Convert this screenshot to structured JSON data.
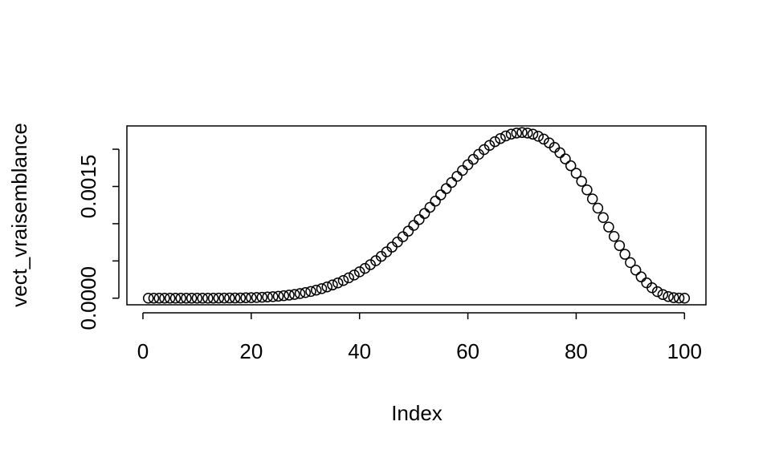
{
  "chart_data": {
    "type": "scatter",
    "x_label": "Index",
    "y_label": "vect_vraisemblance",
    "x": [
      1,
      2,
      3,
      4,
      5,
      6,
      7,
      8,
      9,
      10,
      11,
      12,
      13,
      14,
      15,
      16,
      17,
      18,
      19,
      20,
      21,
      22,
      23,
      24,
      25,
      26,
      27,
      28,
      29,
      30,
      31,
      32,
      33,
      34,
      35,
      36,
      37,
      38,
      39,
      40,
      41,
      42,
      43,
      44,
      45,
      46,
      47,
      48,
      49,
      50,
      51,
      52,
      53,
      54,
      55,
      56,
      57,
      58,
      59,
      60,
      61,
      62,
      63,
      64,
      65,
      66,
      67,
      68,
      69,
      70,
      71,
      72,
      73,
      74,
      75,
      76,
      77,
      78,
      79,
      80,
      81,
      82,
      83,
      84,
      85,
      86,
      87,
      88,
      89,
      90,
      91,
      92,
      93,
      94,
      95,
      96,
      97,
      98,
      99,
      100
    ],
    "values": [
      0,
      0,
      0,
      0,
      0,
      0,
      0,
      0,
      0,
      0,
      0,
      0,
      0,
      1e-06,
      1e-06,
      2e-06,
      2e-06,
      3e-06,
      5e-06,
      7e-06,
      9e-06,
      1.2e-05,
      1.6e-05,
      2e-05,
      2.6e-05,
      3.3e-05,
      4.1e-05,
      5e-05,
      6.2e-05,
      7.5e-05,
      9e-05,
      0.000108,
      0.000128,
      0.000151,
      0.000177,
      0.000205,
      0.000237,
      0.000273,
      0.000311,
      0.000354,
      0.0004,
      0.00045,
      0.000503,
      0.000561,
      0.000622,
      0.000686,
      0.000754,
      0.000825,
      0.0009,
      0.000977,
      0.001056,
      0.001137,
      0.00122,
      0.001303,
      0.001387,
      0.001471,
      0.001554,
      0.001636,
      0.001715,
      0.001792,
      0.001864,
      0.001932,
      0.001995,
      0.002052,
      0.002102,
      0.002144,
      0.002178,
      0.002203,
      0.002218,
      0.002224,
      0.002218,
      0.002202,
      0.002174,
      0.002136,
      0.002086,
      0.002025,
      0.001953,
      0.00187,
      0.001778,
      0.001678,
      0.001569,
      0.001454,
      0.001333,
      0.001209,
      0.001082,
      0.000955,
      0.000829,
      0.000706,
      0.000589,
      0.000478,
      0.000377,
      0.000286,
      0.000206,
      0.00014,
      8.7e-05,
      4.8e-05,
      2.2e-05,
      7e-06,
      1e-06,
      0
    ],
    "color": "#000000",
    "xlim": [
      -2.96,
      103.96
    ],
    "xticks": [
      0,
      20,
      40,
      60,
      80,
      100
    ],
    "ylim": [
      -8.9e-05,
      0.002313
    ],
    "yticks": [
      {
        "value": 0,
        "label": "0.0000"
      },
      {
        "value": 0.0005,
        "label": null
      },
      {
        "value": 0.001,
        "label": null
      },
      {
        "value": 0.0015,
        "label": "0.0015"
      },
      {
        "value": 0.002,
        "label": null
      }
    ]
  }
}
